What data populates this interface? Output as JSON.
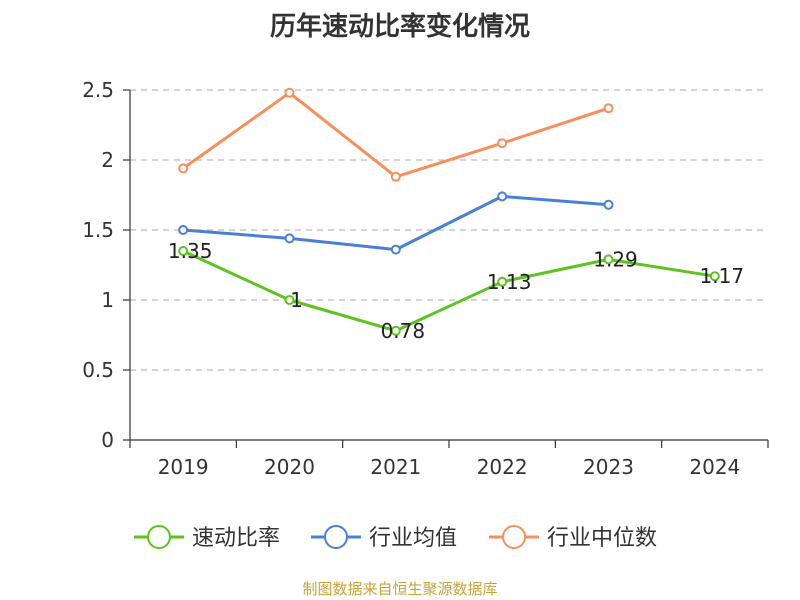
{
  "chart_data": {
    "type": "line",
    "title": "历年速动比率变化情况",
    "categories": [
      "2019",
      "2020",
      "2021",
      "2022",
      "2023",
      "2024"
    ],
    "ylim": [
      0,
      2.5
    ],
    "yticks": [
      "0",
      "0.5",
      "1",
      "1.5",
      "2",
      "2.5"
    ],
    "grid": true,
    "legend_position": "bottom",
    "series": [
      {
        "name": "速动比率",
        "color": "#5cc31f",
        "values": [
          1.35,
          1,
          0.78,
          1.13,
          1.29,
          1.17
        ],
        "labels": [
          "1.35",
          "1",
          "0.78",
          "1.13",
          "1.29",
          "1.17"
        ]
      },
      {
        "name": "行业均值",
        "color": "#4a7fd6",
        "values": [
          1.5,
          1.44,
          1.36,
          1.74,
          1.68,
          null
        ]
      },
      {
        "name": "行业中位数",
        "color": "#f78f5a",
        "values": [
          1.94,
          2.48,
          1.88,
          2.12,
          2.37,
          null
        ]
      }
    ]
  },
  "footer": {
    "source": "制图数据来自恒生聚源数据库"
  }
}
